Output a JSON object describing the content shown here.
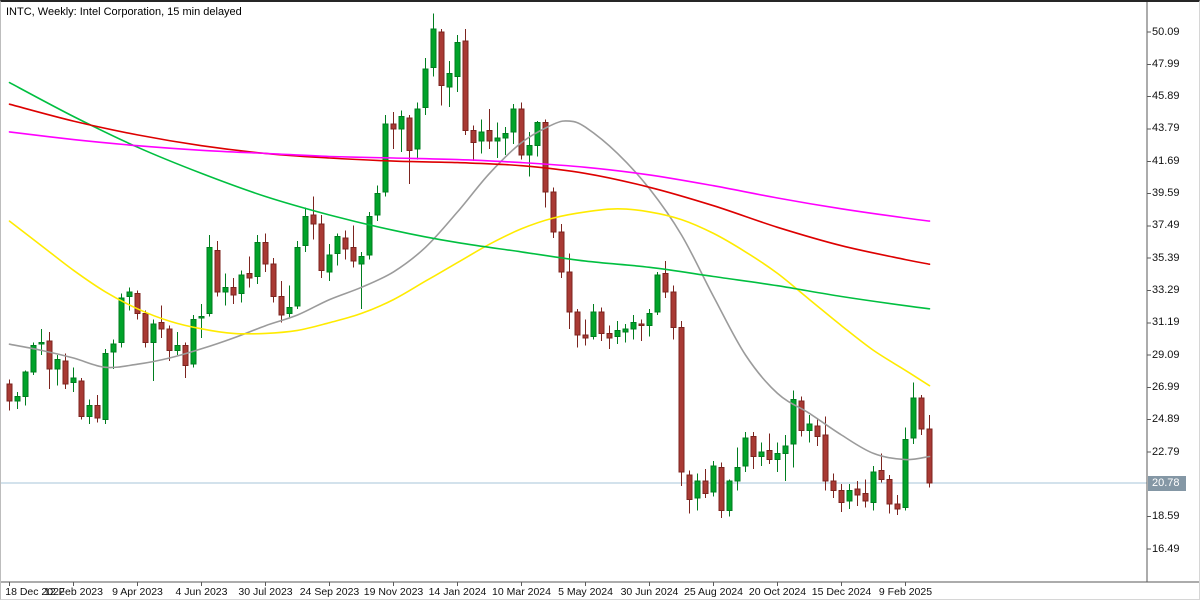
{
  "window": {
    "title": "INTC, Weekly: Intel Corporation, 15 min delayed"
  },
  "chart_data": {
    "type": "candlestick",
    "symbol": "INTC",
    "timeframe": "Weekly",
    "description": "Intel Corporation, 15 min delayed",
    "current_price": "20.78",
    "price_axis": {
      "min": 16.49,
      "max": 50.09,
      "step": 2.1,
      "labels": [
        "50.09",
        "47.99",
        "45.89",
        "43.79",
        "41.69",
        "39.59",
        "37.49",
        "35.39",
        "33.29",
        "31.19",
        "29.09",
        "26.99",
        "24.89",
        "22.79",
        "18.59",
        "16.49"
      ]
    },
    "time_axis": [
      {
        "label": "18 Dec 2022",
        "index": 0
      },
      {
        "label": "12 Feb 2023",
        "index": 8
      },
      {
        "label": "9 Apr 2023",
        "index": 16
      },
      {
        "label": "4 Jun 2023",
        "index": 24
      },
      {
        "label": "30 Jul 2023",
        "index": 32
      },
      {
        "label": "24 Sep 2023",
        "index": 40
      },
      {
        "label": "19 Nov 2023",
        "index": 48
      },
      {
        "label": "14 Jan 2024",
        "index": 56
      },
      {
        "label": "10 Mar 2024",
        "index": 64
      },
      {
        "label": "5 May 2024",
        "index": 72
      },
      {
        "label": "30 Jun 2024",
        "index": 80
      },
      {
        "label": "25 Aug 2024",
        "index": 88
      },
      {
        "label": "20 Oct 2024",
        "index": 96
      },
      {
        "label": "15 Dec 2024",
        "index": 104
      },
      {
        "label": "9 Feb 2025",
        "index": 112
      }
    ],
    "candles_format": "[open, high, low, close] weekly",
    "candles": [
      [
        27.2,
        27.5,
        25.5,
        26.1
      ],
      [
        26.1,
        26.7,
        25.6,
        26.4
      ],
      [
        26.4,
        28.1,
        25.8,
        28.0
      ],
      [
        28.0,
        29.9,
        27.8,
        29.7
      ],
      [
        29.8,
        30.8,
        29.1,
        29.9
      ],
      [
        30.0,
        30.6,
        26.9,
        28.2
      ],
      [
        28.2,
        29.1,
        27.1,
        28.8
      ],
      [
        28.7,
        29.2,
        26.9,
        27.2
      ],
      [
        27.3,
        28.3,
        26.7,
        27.6
      ],
      [
        27.4,
        27.6,
        24.9,
        25.1
      ],
      [
        25.1,
        26.2,
        24.6,
        25.8
      ],
      [
        25.8,
        26.5,
        24.7,
        25.0
      ],
      [
        24.9,
        29.5,
        24.6,
        29.2
      ],
      [
        29.3,
        30.1,
        28.2,
        29.8
      ],
      [
        29.9,
        33.1,
        29.6,
        32.8
      ],
      [
        32.9,
        33.5,
        32.0,
        33.2
      ],
      [
        33.1,
        33.3,
        31.4,
        31.8
      ],
      [
        31.8,
        32.0,
        29.6,
        29.9
      ],
      [
        29.9,
        31.4,
        27.4,
        31.1
      ],
      [
        31.2,
        32.3,
        30.2,
        30.8
      ],
      [
        30.8,
        31.0,
        28.7,
        29.4
      ],
      [
        29.4,
        30.6,
        29.1,
        29.7
      ],
      [
        29.7,
        29.9,
        27.6,
        28.4
      ],
      [
        28.5,
        31.7,
        28.3,
        31.4
      ],
      [
        31.5,
        32.4,
        30.2,
        31.6
      ],
      [
        31.8,
        36.9,
        31.6,
        36.1
      ],
      [
        35.9,
        36.5,
        32.9,
        33.2
      ],
      [
        33.2,
        34.4,
        32.3,
        33.5
      ],
      [
        33.5,
        34.1,
        32.4,
        33.0
      ],
      [
        33.1,
        34.6,
        32.5,
        34.3
      ],
      [
        34.4,
        35.5,
        33.5,
        34.1
      ],
      [
        34.2,
        36.9,
        33.7,
        36.4
      ],
      [
        36.4,
        37.0,
        34.5,
        35.0
      ],
      [
        35.0,
        35.4,
        32.5,
        32.9
      ],
      [
        32.9,
        33.9,
        31.2,
        31.7
      ],
      [
        31.8,
        33.6,
        31.5,
        32.2
      ],
      [
        32.3,
        36.5,
        32.1,
        36.1
      ],
      [
        36.2,
        38.7,
        35.8,
        38.1
      ],
      [
        38.2,
        39.4,
        36.6,
        37.6
      ],
      [
        37.6,
        38.2,
        34.1,
        34.6
      ],
      [
        34.5,
        36.3,
        33.9,
        35.6
      ],
      [
        35.7,
        37.0,
        34.9,
        36.8
      ],
      [
        36.7,
        37.2,
        35.3,
        36.0
      ],
      [
        36.1,
        37.5,
        34.8,
        35.2
      ],
      [
        35.0,
        35.8,
        32.1,
        35.5
      ],
      [
        35.6,
        38.4,
        35.3,
        38.1
      ],
      [
        38.2,
        40.1,
        37.8,
        39.6
      ],
      [
        39.7,
        44.7,
        39.4,
        44.1
      ],
      [
        44.1,
        44.9,
        42.5,
        43.8
      ],
      [
        43.8,
        45.0,
        42.3,
        44.6
      ],
      [
        44.5,
        44.7,
        40.2,
        42.4
      ],
      [
        42.5,
        45.5,
        41.8,
        45.1
      ],
      [
        45.2,
        48.4,
        44.7,
        47.7
      ],
      [
        47.8,
        51.3,
        47.2,
        50.3
      ],
      [
        50.1,
        50.3,
        45.3,
        46.6
      ],
      [
        46.5,
        48.2,
        45.2,
        47.4
      ],
      [
        47.2,
        49.9,
        46.2,
        49.4
      ],
      [
        49.5,
        50.3,
        43.4,
        43.7
      ],
      [
        43.7,
        44.0,
        41.7,
        42.9
      ],
      [
        43.0,
        44.4,
        42.2,
        43.6
      ],
      [
        43.7,
        45.1,
        42.5,
        43.0
      ],
      [
        43.0,
        44.2,
        41.9,
        43.2
      ],
      [
        43.2,
        43.9,
        42.1,
        43.5
      ],
      [
        43.6,
        45.4,
        42.8,
        45.1
      ],
      [
        45.1,
        45.5,
        41.8,
        42.1
      ],
      [
        42.1,
        43.6,
        40.7,
        42.7
      ],
      [
        42.7,
        44.3,
        42.0,
        44.2
      ],
      [
        44.2,
        44.4,
        38.7,
        39.7
      ],
      [
        39.7,
        40.0,
        36.7,
        37.1
      ],
      [
        37.1,
        37.6,
        34.1,
        34.5
      ],
      [
        34.5,
        35.7,
        30.8,
        31.9
      ],
      [
        31.9,
        32.1,
        29.6,
        30.4
      ],
      [
        30.4,
        31.4,
        29.7,
        30.2
      ],
      [
        30.3,
        32.4,
        30.1,
        31.9
      ],
      [
        31.9,
        32.2,
        30.0,
        30.5
      ],
      [
        30.5,
        31.0,
        29.5,
        30.2
      ],
      [
        30.3,
        31.3,
        29.8,
        30.7
      ],
      [
        30.6,
        31.1,
        29.9,
        30.8
      ],
      [
        30.8,
        31.7,
        30.1,
        31.2
      ],
      [
        31.1,
        31.4,
        30.0,
        31.0
      ],
      [
        31.0,
        32.1,
        30.3,
        31.8
      ],
      [
        31.9,
        34.5,
        31.7,
        34.3
      ],
      [
        34.4,
        35.2,
        32.8,
        33.2
      ],
      [
        33.2,
        33.6,
        30.1,
        30.9
      ],
      [
        30.9,
        31.3,
        20.6,
        21.5
      ],
      [
        21.3,
        21.6,
        18.8,
        19.7
      ],
      [
        19.8,
        21.4,
        19.0,
        20.9
      ],
      [
        20.9,
        21.7,
        19.8,
        20.1
      ],
      [
        20.2,
        22.2,
        19.9,
        21.9
      ],
      [
        21.8,
        22.1,
        18.5,
        19.0
      ],
      [
        19.0,
        21.0,
        18.6,
        20.9
      ],
      [
        20.9,
        23.1,
        20.3,
        21.8
      ],
      [
        21.9,
        24.1,
        21.5,
        23.7
      ],
      [
        23.8,
        24.1,
        21.7,
        22.5
      ],
      [
        22.5,
        23.4,
        21.9,
        22.8
      ],
      [
        22.9,
        24.0,
        22.0,
        22.3
      ],
      [
        22.3,
        23.4,
        21.5,
        22.7
      ],
      [
        22.7,
        23.9,
        20.9,
        23.2
      ],
      [
        23.3,
        26.8,
        21.8,
        26.2
      ],
      [
        26.1,
        26.4,
        23.8,
        24.2
      ],
      [
        24.2,
        25.2,
        23.4,
        24.6
      ],
      [
        24.5,
        25.0,
        23.2,
        23.8
      ],
      [
        23.9,
        25.1,
        20.3,
        20.9
      ],
      [
        20.9,
        21.4,
        19.8,
        20.3
      ],
      [
        20.3,
        20.7,
        18.9,
        19.5
      ],
      [
        19.6,
        20.7,
        19.1,
        20.3
      ],
      [
        20.4,
        20.9,
        19.3,
        20.0
      ],
      [
        20.1,
        21.0,
        19.2,
        19.6
      ],
      [
        19.5,
        21.9,
        19.0,
        21.5
      ],
      [
        21.6,
        22.7,
        20.8,
        21.0
      ],
      [
        21.0,
        21.3,
        18.8,
        19.4
      ],
      [
        19.4,
        20.0,
        18.7,
        19.1
      ],
      [
        19.2,
        24.4,
        19.0,
        23.6
      ],
      [
        23.7,
        27.3,
        23.3,
        26.3
      ],
      [
        26.3,
        26.5,
        23.9,
        24.3
      ],
      [
        24.3,
        25.2,
        20.5,
        20.78
      ]
    ],
    "moving_averages": [
      {
        "name": "ma-gray-fast",
        "color": "#9b9b9b",
        "points": [
          [
            0,
            29.8
          ],
          [
            4,
            29.4
          ],
          [
            8,
            28.9
          ],
          [
            12,
            28.3
          ],
          [
            16,
            28.5
          ],
          [
            20,
            28.9
          ],
          [
            24,
            29.5
          ],
          [
            28,
            30.2
          ],
          [
            32,
            31.0
          ],
          [
            36,
            31.7
          ],
          [
            40,
            32.7
          ],
          [
            44,
            33.5
          ],
          [
            48,
            34.5
          ],
          [
            52,
            36.1
          ],
          [
            56,
            38.4
          ],
          [
            60,
            40.9
          ],
          [
            64,
            42.9
          ],
          [
            68,
            44.1
          ],
          [
            70,
            44.3
          ],
          [
            72,
            43.9
          ],
          [
            76,
            42.2
          ],
          [
            80,
            39.9
          ],
          [
            84,
            36.9
          ],
          [
            88,
            32.9
          ],
          [
            92,
            29.1
          ],
          [
            96,
            26.6
          ],
          [
            100,
            25.3
          ],
          [
            104,
            23.9
          ],
          [
            108,
            22.7
          ],
          [
            112,
            22.3
          ],
          [
            115,
            22.5
          ]
        ]
      },
      {
        "name": "ma-yellow",
        "color": "#ffeb00",
        "points": [
          [
            0,
            37.8
          ],
          [
            4,
            36.2
          ],
          [
            8,
            34.6
          ],
          [
            12,
            33.2
          ],
          [
            16,
            32.1
          ],
          [
            20,
            31.3
          ],
          [
            24,
            30.8
          ],
          [
            28,
            30.5
          ],
          [
            32,
            30.5
          ],
          [
            36,
            30.7
          ],
          [
            40,
            31.2
          ],
          [
            44,
            31.8
          ],
          [
            48,
            32.7
          ],
          [
            52,
            33.9
          ],
          [
            56,
            35.1
          ],
          [
            60,
            36.3
          ],
          [
            64,
            37.3
          ],
          [
            68,
            38.0
          ],
          [
            72,
            38.4
          ],
          [
            76,
            38.6
          ],
          [
            80,
            38.4
          ],
          [
            84,
            37.9
          ],
          [
            88,
            37.0
          ],
          [
            92,
            35.8
          ],
          [
            96,
            34.4
          ],
          [
            100,
            32.7
          ],
          [
            104,
            31.0
          ],
          [
            108,
            29.4
          ],
          [
            112,
            28.1
          ],
          [
            115,
            27.1
          ]
        ]
      },
      {
        "name": "ma-green",
        "color": "#00bf40",
        "points": [
          [
            0,
            46.8
          ],
          [
            8,
            44.6
          ],
          [
            16,
            42.6
          ],
          [
            24,
            40.9
          ],
          [
            32,
            39.4
          ],
          [
            40,
            38.2
          ],
          [
            48,
            37.2
          ],
          [
            56,
            36.4
          ],
          [
            64,
            35.8
          ],
          [
            72,
            35.2
          ],
          [
            80,
            34.8
          ],
          [
            88,
            34.2
          ],
          [
            96,
            33.6
          ],
          [
            104,
            32.9
          ],
          [
            112,
            32.3
          ],
          [
            115,
            32.1
          ]
        ]
      },
      {
        "name": "ma-red",
        "color": "#dd0000",
        "points": [
          [
            0,
            45.4
          ],
          [
            8,
            44.3
          ],
          [
            16,
            43.4
          ],
          [
            24,
            42.7
          ],
          [
            32,
            42.2
          ],
          [
            40,
            41.9
          ],
          [
            48,
            41.7
          ],
          [
            56,
            41.6
          ],
          [
            64,
            41.4
          ],
          [
            72,
            40.9
          ],
          [
            80,
            40.0
          ],
          [
            88,
            38.8
          ],
          [
            96,
            37.4
          ],
          [
            104,
            36.2
          ],
          [
            112,
            35.3
          ],
          [
            115,
            35.0
          ]
        ]
      },
      {
        "name": "ma-magenta",
        "color": "#ff00ff",
        "points": [
          [
            0,
            43.6
          ],
          [
            8,
            43.1
          ],
          [
            16,
            42.7
          ],
          [
            24,
            42.4
          ],
          [
            32,
            42.2
          ],
          [
            40,
            42.0
          ],
          [
            48,
            41.9
          ],
          [
            56,
            41.8
          ],
          [
            64,
            41.6
          ],
          [
            72,
            41.3
          ],
          [
            80,
            40.8
          ],
          [
            88,
            40.1
          ],
          [
            96,
            39.3
          ],
          [
            104,
            38.6
          ],
          [
            112,
            38.0
          ],
          [
            115,
            37.8
          ]
        ]
      }
    ],
    "colors": {
      "bull_fill": "#00a32a",
      "bull_stroke": "#007d1f",
      "bear_fill": "#a93a34",
      "bear_stroke": "#7c241f",
      "bid_line": "#a7c6da",
      "bid_tag_bg": "#8497a5",
      "axis_line": "#5a5a5a",
      "background": "#ffffff"
    },
    "grid": false,
    "legend": "none"
  }
}
